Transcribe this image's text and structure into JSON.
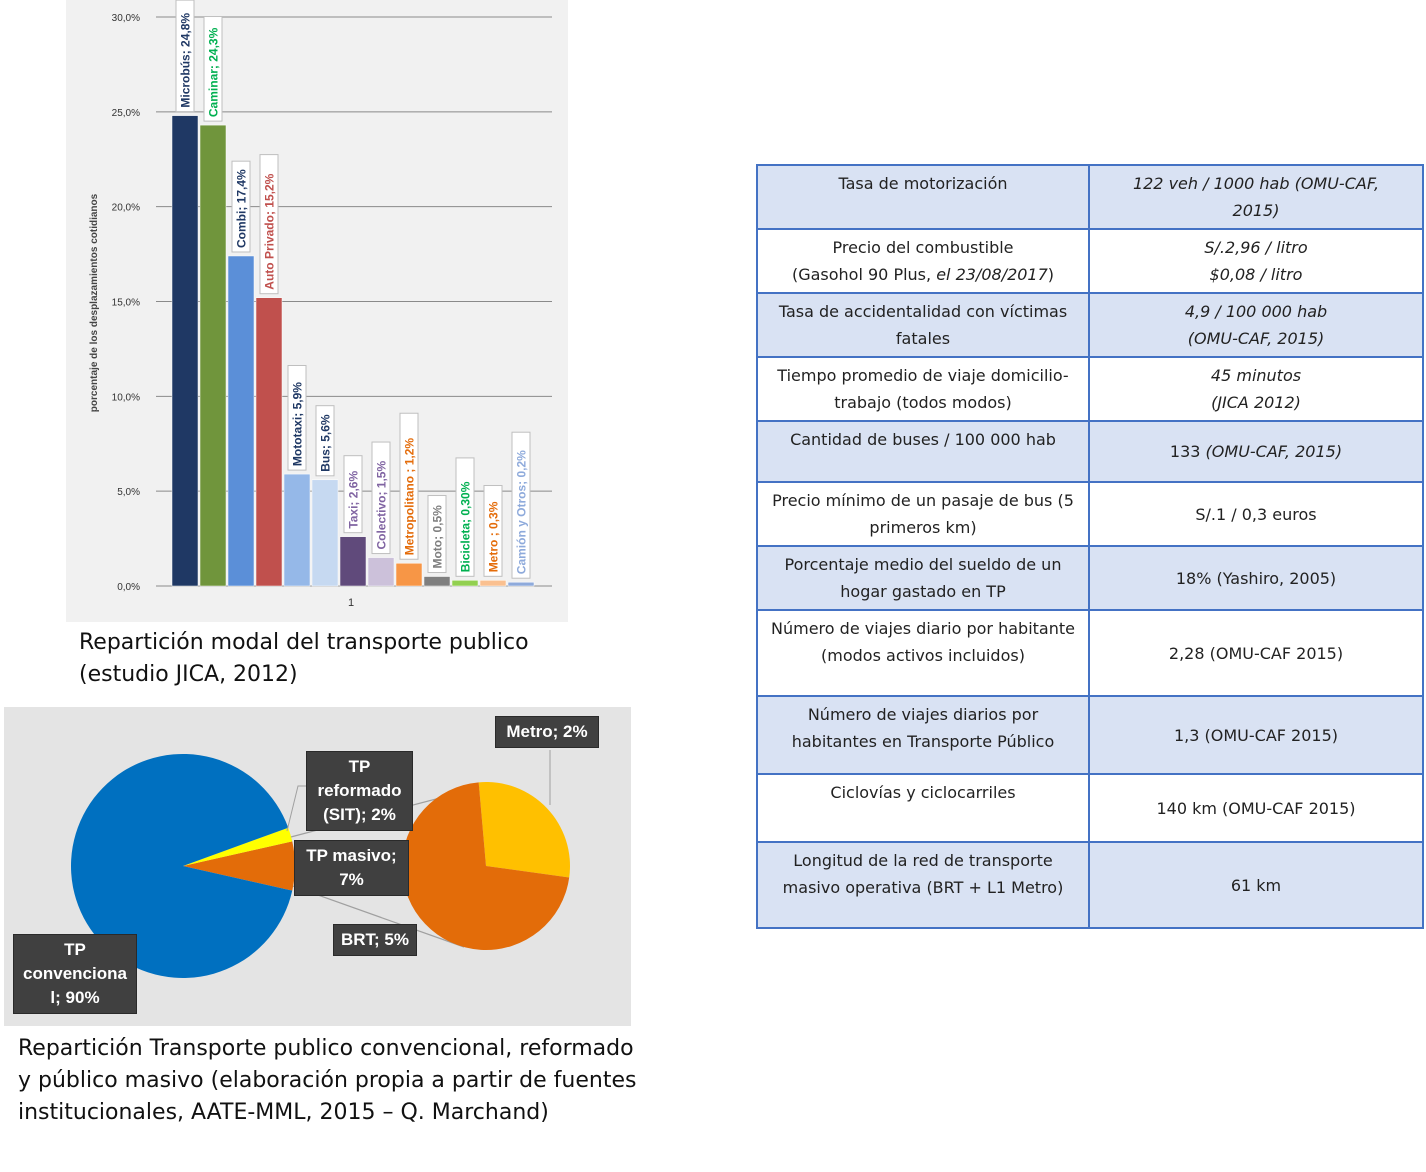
{
  "chart_data": [
    {
      "type": "bar",
      "title": "",
      "xlabel": "",
      "ylabel": "porcentaje de los desplazamientos cotidianos",
      "categories": [
        "1"
      ],
      "ylim": [
        0,
        30
      ],
      "yticks": [
        "0,0%",
        "5,0%",
        "10,0%",
        "15,0%",
        "20,0%",
        "25,0%",
        "30,0%"
      ],
      "grid": true,
      "series": [
        {
          "name": "Microbús",
          "label": "Microbús; 24,8%",
          "value": 24.8,
          "color": "#1f3864"
        },
        {
          "name": "Caminar",
          "label": "Caminar; 24,3%",
          "value": 24.3,
          "color": "#70953c"
        },
        {
          "name": "Combi",
          "label": "Combi; 17,4%",
          "value": 17.4,
          "color": "#5b8fd8"
        },
        {
          "name": "Auto Privado",
          "label": "Auto Privado; 15,2%",
          "value": 15.2,
          "color": "#c0504d"
        },
        {
          "name": "Mototaxi",
          "label": "Mototaxi; 5,9%",
          "value": 5.9,
          "color": "#95b8e8"
        },
        {
          "name": "Bus",
          "label": "Bus; 5,6%",
          "value": 5.6,
          "color": "#c6d9f1"
        },
        {
          "name": "Taxi",
          "label": "Taxi; 2,6%",
          "value": 2.6,
          "color": "#604a7b"
        },
        {
          "name": "Colectivo",
          "label": "Colectivo; 1,5%",
          "value": 1.5,
          "color": "#ccc1da"
        },
        {
          "name": "Metropolitano",
          "label": "Metropolitano ; 1,2%",
          "value": 1.2,
          "color": "#f79646"
        },
        {
          "name": "Moto",
          "label": "Moto; 0,5%",
          "value": 0.5,
          "color": "#7f7f7f"
        },
        {
          "name": "Bicicleta",
          "label": "Bicicleta; 0,30%",
          "value": 0.3,
          "color": "#92d050"
        },
        {
          "name": "Metro",
          "label": "Metro ; 0,3%",
          "value": 0.3,
          "color": "#fac090"
        },
        {
          "name": "Camión y Otros",
          "label": "Camión y Otros; 0,2%",
          "value": 0.2,
          "color": "#8eaadb"
        }
      ],
      "label_colors": [
        "#1f3864",
        "#00b050",
        "#1f3864",
        "#c0504d",
        "#1f3864",
        "#1f3864",
        "#8064a2",
        "#8064a2",
        "#e46c0a",
        "#7f7f7f",
        "#00b050",
        "#e46c0a",
        "#8eaadb"
      ]
    },
    {
      "type": "pie",
      "title": "",
      "slices": [
        {
          "name": "TP convencional",
          "value": 90,
          "label": "TP convencional; 90%",
          "color": "#0070c0"
        },
        {
          "name": "TP reformado (SIT)",
          "value": 2,
          "label": "TP reformado (SIT); 2%",
          "color": "#ffff00"
        },
        {
          "name": "TP masivo",
          "value": 7,
          "label": "TP masivo; 7%",
          "color": "#e36c09"
        }
      ],
      "secondary_pie": {
        "of": "TP masivo",
        "slices": [
          {
            "name": "BRT",
            "value": 5,
            "label": "BRT; 5%",
            "color": "#e36c09"
          },
          {
            "name": "Metro",
            "value": 2,
            "label": "Metro; 2%",
            "color": "#ffc000"
          }
        ]
      }
    }
  ],
  "captions": {
    "bar": "Repartición modal del transporte publico (estudio JICA, 2012)",
    "pie": "Repartición Transporte publico convencional, reformado y público masivo (elaboración propia a partir de fuentes institucionales, AATE-MML, 2015 – Q. Marchand)"
  },
  "pie_labels": {
    "tp_conv_1": "TP",
    "tp_conv_2": "convenciona",
    "tp_conv_3": "l; 90%",
    "tp_ref_1": "TP",
    "tp_ref_2": "reformado",
    "tp_ref_3": "(SIT); 2%",
    "tp_mas_1": "TP masivo;",
    "tp_mas_2": "7%",
    "brt": "BRT; 5%",
    "metro": "Metro; 2%"
  },
  "table": {
    "rows": [
      {
        "k": "Tasa de motorización",
        "v1": "122 veh / 1000 hab (OMU-CAF,",
        "v2": "2015)"
      },
      {
        "k": "Precio del combustible",
        "k2a": "(Gasohol 90 Plus, ",
        "k2b": "el 23/08/2017",
        "k2c": ")",
        "v1": "S/.2,96 / litro",
        "v2": "$0,08 / litro"
      },
      {
        "k": "Tasa de accidentalidad con víctimas fatales",
        "v1": "4,9 / 100 000 hab",
        "v2": "(OMU-CAF, 2015)"
      },
      {
        "k": "Tiempo promedio de viaje domicilio-trabajo (todos modos)",
        "v1": "45 minutos",
        "v2": "(JICA 2012)"
      },
      {
        "k": "Cantidad de buses / 100 000 hab",
        "va": "133 ",
        "vb": "(OMU-CAF, 2015)"
      },
      {
        "k": "Precio mínimo de un pasaje de bus (5 primeros km)",
        "v": "S/.1 / 0,3 euros"
      },
      {
        "k": "Porcentaje medio del sueldo de un hogar gastado en TP",
        "v": "18% (Yashiro, 2005)"
      },
      {
        "k": "Número de viajes diario por habitante (modos activos incluidos)",
        "v": "2,28 (OMU-CAF 2015)"
      },
      {
        "k": "Número de viajes diarios por habitantes en Transporte Público",
        "v": "1,3 (OMU-CAF 2015)"
      },
      {
        "k": "Ciclovías y ciclocarriles",
        "v": "140 km (OMU-CAF 2015)"
      },
      {
        "k": "Longitud de la red de transporte masivo operativa (BRT + L1 Metro)",
        "v": "61 km"
      }
    ]
  }
}
